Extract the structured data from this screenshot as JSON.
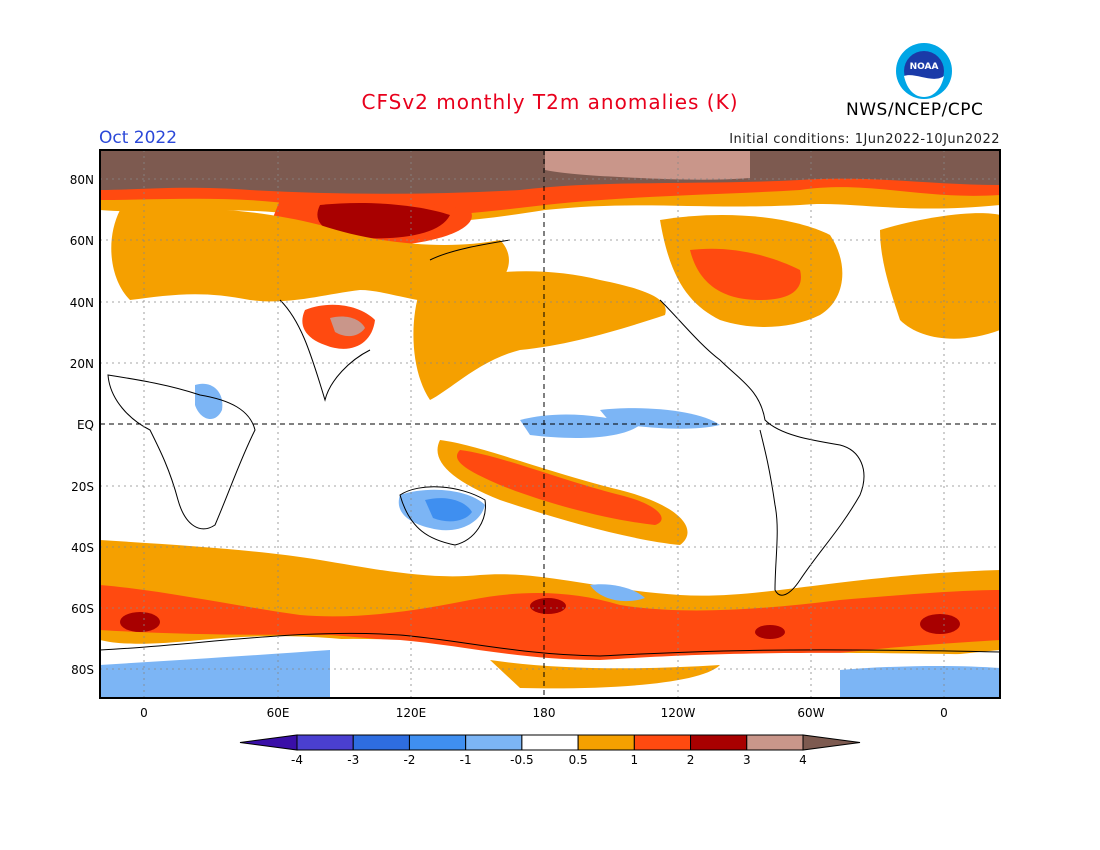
{
  "title": "CFSv2 monthly T2m anomalies (K)",
  "period": "Oct 2022",
  "initial_conditions": "Initial conditions: 1Jun2022-10Jun2022",
  "agency": "NWS/NCEP/CPC",
  "logo_text": "NOAA",
  "lat_labels": [
    "80N",
    "60N",
    "40N",
    "20N",
    "EQ",
    "20S",
    "40S",
    "60S",
    "80S"
  ],
  "lon_labels": [
    "0",
    "60E",
    "120E",
    "180",
    "120W",
    "60W",
    "0"
  ],
  "colorbar": {
    "labels": [
      "-4",
      "-3",
      "-2",
      "-1",
      "-0.5",
      "0.5",
      "1",
      "2",
      "3",
      "4"
    ],
    "colors": [
      "#3a0fa8",
      "#4a3fd0",
      "#2e6de0",
      "#3f8ff0",
      "#7cb5f5",
      "#ffffff",
      "#f5a000",
      "#ff4a10",
      "#a80000",
      "#c9968a",
      "#7d5a50"
    ]
  }
}
